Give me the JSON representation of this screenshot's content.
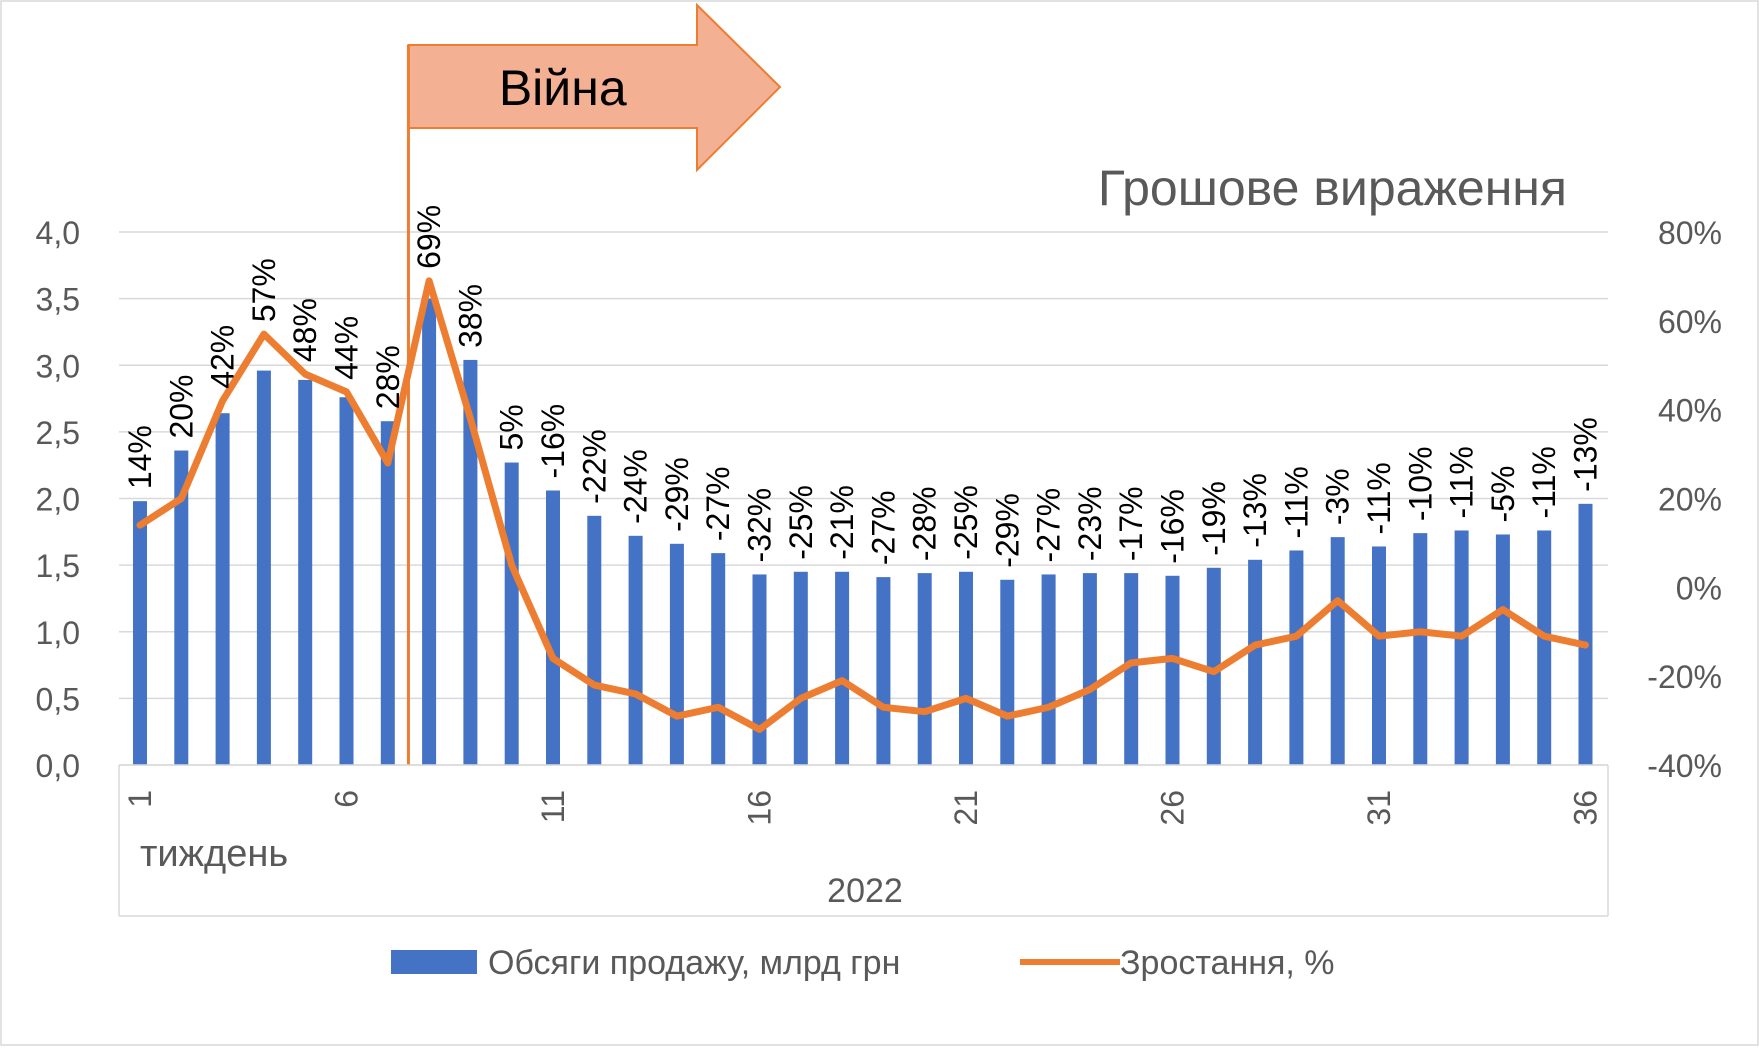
{
  "chart_data": {
    "type": "bar",
    "title": "Грошове вираження",
    "annotation": "Війна",
    "xlabel": "тиждень",
    "x_group_label": "2022",
    "x": [
      1,
      2,
      3,
      4,
      5,
      6,
      7,
      8,
      9,
      10,
      11,
      12,
      13,
      14,
      15,
      16,
      17,
      18,
      19,
      20,
      21,
      22,
      23,
      24,
      25,
      26,
      27,
      28,
      29,
      30,
      31,
      32,
      33,
      34,
      35,
      36
    ],
    "x_tick_labels": [
      "1",
      "6",
      "11",
      "16",
      "21",
      "26",
      "31",
      "36"
    ],
    "x_tick_values": [
      1,
      6,
      11,
      16,
      21,
      26,
      31,
      36
    ],
    "y_left": {
      "ylim": [
        0,
        4
      ],
      "ticks": [
        "0,0",
        "0,5",
        "1,0",
        "1,5",
        "2,0",
        "2,5",
        "3,0",
        "3,5",
        "4,0"
      ]
    },
    "y_right": {
      "ylim": [
        -40,
        80
      ],
      "ticks": [
        "-40%",
        "-20%",
        "0%",
        "20%",
        "40%",
        "60%",
        "80%"
      ]
    },
    "grid": true,
    "legend_position": "bottom",
    "war_start_x": 7.5,
    "series": [
      {
        "name": "Обсяги продажу, млрд грн",
        "type": "bar",
        "axis": "left",
        "color": "#4472C4",
        "values": [
          1.98,
          2.36,
          2.64,
          2.96,
          2.89,
          2.76,
          2.58,
          3.5,
          3.04,
          2.27,
          2.06,
          1.87,
          1.72,
          1.66,
          1.59,
          1.43,
          1.45,
          1.45,
          1.41,
          1.44,
          1.45,
          1.39,
          1.43,
          1.44,
          1.44,
          1.42,
          1.48,
          1.54,
          1.61,
          1.71,
          1.64,
          1.74,
          1.76,
          1.73,
          1.76,
          1.96
        ]
      },
      {
        "name": "Зростання, %",
        "type": "line",
        "axis": "right",
        "color": "#ED7D31",
        "values": [
          14,
          20,
          42,
          57,
          48,
          44,
          28,
          69,
          38,
          5,
          -16,
          -22,
          -24,
          -29,
          -27,
          -32,
          -25,
          -21,
          -27,
          -28,
          -25,
          -29,
          -27,
          -23,
          -17,
          -16,
          -19,
          -13,
          -11,
          -3,
          -11,
          -10,
          -11,
          -5,
          -11,
          -13
        ],
        "labels": [
          "14%",
          "20%",
          "42%",
          "57%",
          "48%",
          "44%",
          "28%",
          "69%",
          "38%",
          "5%",
          "-16%",
          "-22%",
          "-24%",
          "-29%",
          "-27%",
          "-32%",
          "-25%",
          "-21%",
          "-27%",
          "-28%",
          "-25%",
          "-29%",
          "-27%",
          "-23%",
          "-17%",
          "-16%",
          "-19%",
          "-13%",
          "-11%",
          "-3%",
          "-11%",
          "-10%",
          "-11%",
          "-5%",
          "-11%",
          "-13%"
        ]
      }
    ]
  }
}
